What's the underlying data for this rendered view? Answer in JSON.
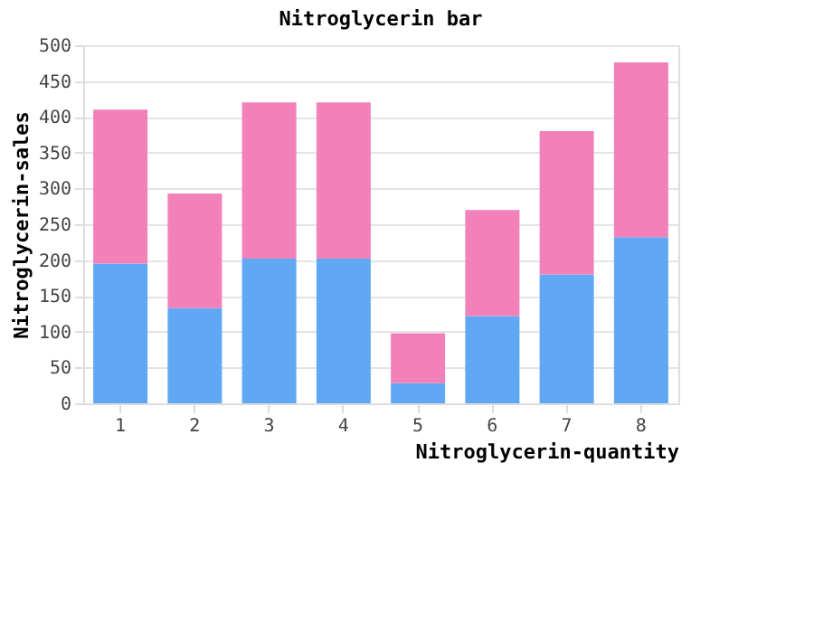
{
  "chart_data": {
    "type": "bar",
    "title": "Nitroglycerin bar",
    "xlabel": "Nitroglycerin-quantity",
    "ylabel": "Nitroglycerin-sales",
    "categories": [
      "1",
      "2",
      "3",
      "4",
      "5",
      "6",
      "7",
      "8"
    ],
    "series": [
      {
        "color": "#60a8f3",
        "values": [
          195,
          133,
          202,
          202,
          28,
          122,
          180,
          232
        ]
      },
      {
        "color": "#f281b9",
        "values": [
          215,
          160,
          218,
          218,
          70,
          148,
          200,
          244
        ]
      }
    ],
    "stacked": true,
    "ylim": [
      0,
      500
    ],
    "yticks": [
      0,
      50,
      100,
      150,
      200,
      250,
      300,
      350,
      400,
      450,
      500
    ],
    "grid": "y"
  }
}
